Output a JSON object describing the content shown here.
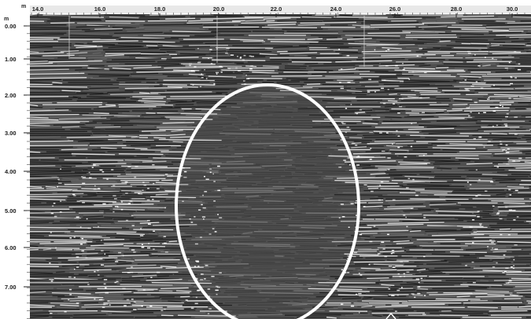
{
  "horizontal_axis": {
    "unit": "m",
    "labels": [
      "14.0",
      "16.0",
      "18.0",
      "20.0",
      "22.0",
      "24.0",
      "26.0",
      "28.0",
      "30.0"
    ]
  },
  "vertical_axis": {
    "unit": "m",
    "labels": [
      "0.00",
      "1.00",
      "2.00",
      "3.00",
      "4.00",
      "5.00",
      "6.00",
      "7.00"
    ]
  },
  "anomaly_marker": {
    "shape": "ellipse",
    "color": "#ffffff"
  },
  "colors": {
    "background": "#4f4f4f",
    "reflection_bright": "#f2f2f2",
    "reflection_dark": "#1a1a1a",
    "axis_text": "#202020"
  }
}
